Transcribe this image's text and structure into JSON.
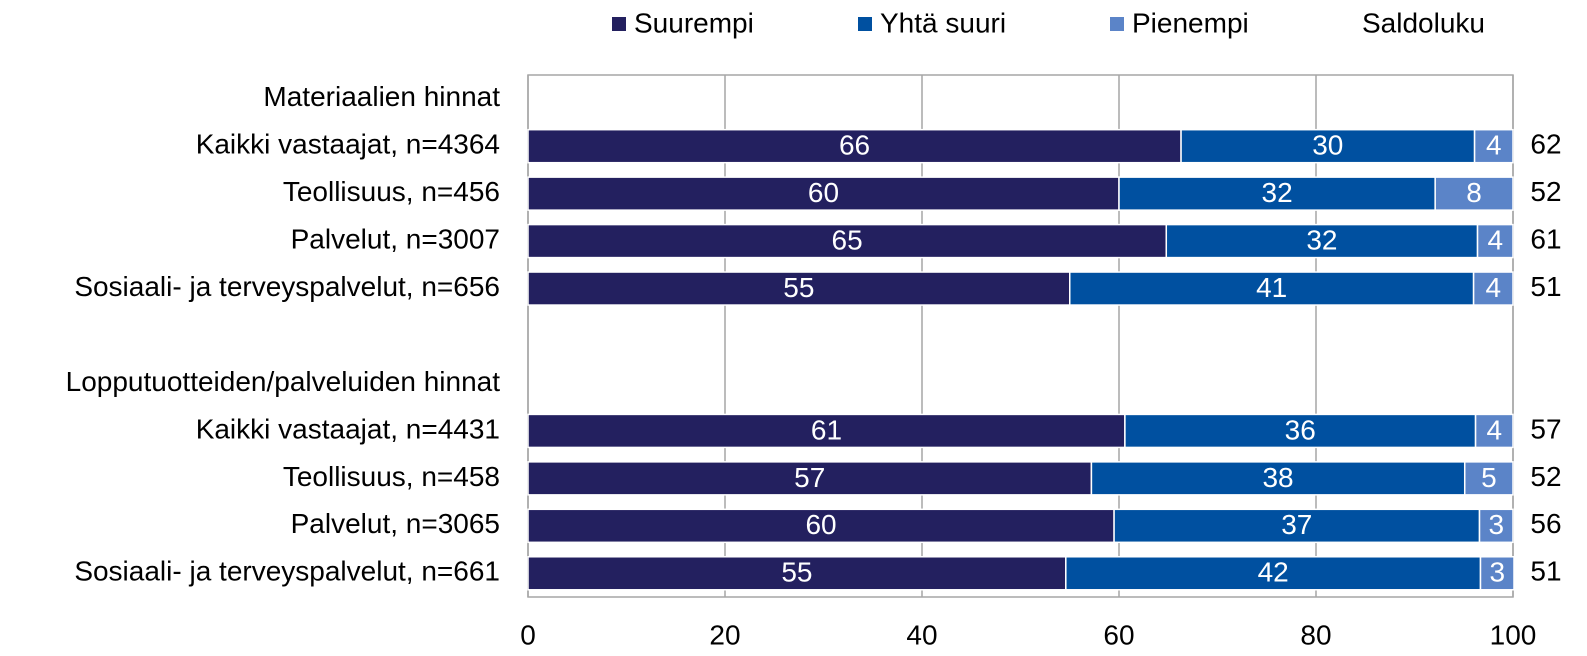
{
  "chart_data": {
    "type": "stacked-bar-horizontal",
    "categories": [
      "Materiaalien hinnat",
      "Kaikki vastaajat, n=4364",
      "Teollisuus, n=456",
      "Palvelut, n=3007",
      "Sosiaali- ja terveyspalvelut, n=656",
      null,
      "Lopputuotteiden/palveluiden hinnat",
      "Kaikki vastaajat, n=4431",
      "Teollisuus, n=458",
      "Palvelut, n=3065",
      "Sosiaali- ja terveyspalvelut, n=661"
    ],
    "series": [
      {
        "name": "Suurempi",
        "color": "#23205f",
        "values": [
          null,
          66.3,
          60.0,
          64.8,
          55.0,
          null,
          null,
          60.6,
          57.2,
          59.5,
          54.6
        ],
        "value_labels": [
          null,
          "66",
          "60",
          "65",
          "55",
          null,
          null,
          "61",
          "57",
          "60",
          "55"
        ]
      },
      {
        "name": "Yhtä suuri",
        "color": "#0050a0",
        "values": [
          null,
          29.8,
          32.1,
          31.6,
          41.0,
          null,
          null,
          35.6,
          37.9,
          37.1,
          42.1
        ],
        "value_labels": [
          null,
          "30",
          "32",
          "32",
          "41",
          null,
          null,
          "36",
          "38",
          "37",
          "42"
        ]
      },
      {
        "name": "Pienempi",
        "color": "#5b84c8",
        "values": [
          null,
          3.9,
          7.9,
          3.6,
          4.0,
          null,
          null,
          3.8,
          4.9,
          3.4,
          3.4
        ],
        "value_labels": [
          null,
          "4",
          "8",
          "4",
          "4",
          null,
          null,
          "4",
          "5",
          "3",
          "3"
        ]
      }
    ],
    "balance": {
      "name": "Saldoluku",
      "values": [
        null,
        62,
        52,
        61,
        51,
        null,
        null,
        57,
        52,
        56,
        51
      ]
    },
    "xlim": [
      0,
      100
    ],
    "xticks": [
      0,
      20,
      40,
      60,
      80,
      100
    ],
    "grid": true,
    "legend": "top"
  }
}
